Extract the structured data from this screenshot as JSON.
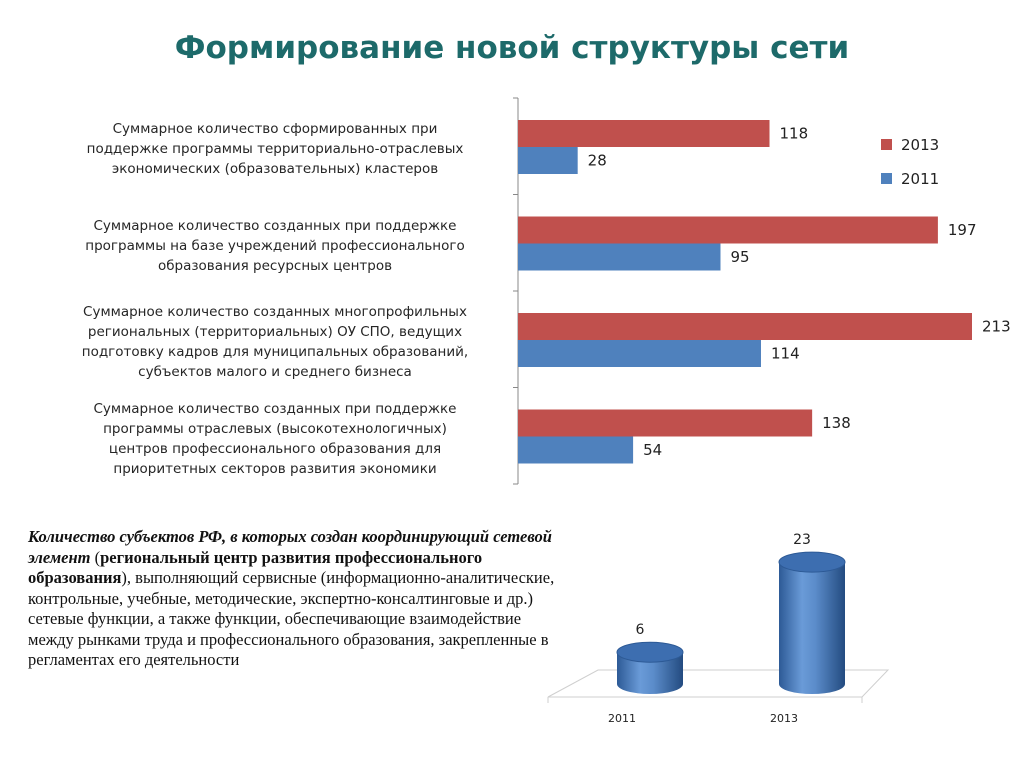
{
  "title": "Формирование новой структуры сети",
  "chart_data": [
    {
      "type": "bar",
      "orientation": "horizontal",
      "categories": [
        "Суммарное количество сформированных при поддержке программы территориально-отраслевых экономических (образовательных) кластеров",
        "Суммарное количество созданных при поддержке программы на базе учреждений профессионального образования ресурсных центров",
        "Суммарное количество созданных многопрофильных региональных (территориальных) ОУ СПО, ведущих подготовку кадров для муниципальных образований, субъектов малого и среднего бизнеса",
        "Суммарное количество созданных при поддержке программы отраслевых (высокотехнологичных) центров профессионального образования  для приоритетных секторов развития экономики"
      ],
      "category_lines": [
        [
          "Суммарное количество сформированных при",
          "поддержке программы территориально-отраслевых",
          "экономических (образовательных) кластеров"
        ],
        [
          "Суммарное количество созданных при поддержке",
          "программы на базе учреждений профессионального",
          "образования ресурсных центров"
        ],
        [
          "Суммарное количество созданных многопрофильных",
          "региональных (территориальных) ОУ СПО, ведущих",
          "подготовку кадров для муниципальных образований,",
          "субъектов малого и среднего бизнеса"
        ],
        [
          "Суммарное количество созданных при поддержке",
          "программы отраслевых (высокотехнологичных)",
          "центров профессионального образования  для",
          "приоритетных секторов развития экономики"
        ]
      ],
      "series": [
        {
          "name": "2013",
          "values": [
            118,
            197,
            213,
            138
          ],
          "color": "#c0504d"
        },
        {
          "name": "2011",
          "values": [
            28,
            95,
            114,
            54
          ],
          "color": "#4f81bd"
        }
      ],
      "xlim": [
        0,
        213
      ],
      "data_labels": true,
      "legend": "right"
    },
    {
      "type": "bar",
      "style": "3d-cylinder",
      "categories": [
        "2011",
        "2013"
      ],
      "values": [
        6,
        23
      ],
      "color": "#4f81bd",
      "data_labels": true
    }
  ],
  "note": {
    "italic_part": "Количество субъектов РФ, в которых создан координирующий сетевой элемент",
    "open_paren": " (",
    "bold_part": "региональный центр развития профессионального образования",
    "rest": "), выполняющий сервисные (информационно-аналитические, контрольные, учебные, методические, экспертно-консалтинговые и др.) сетевые  функции, а также функции,  обеспечивающие взаимодействие между рынками труда и профессионального образования,  закрепленные  в регламентах его  деятельности"
  }
}
